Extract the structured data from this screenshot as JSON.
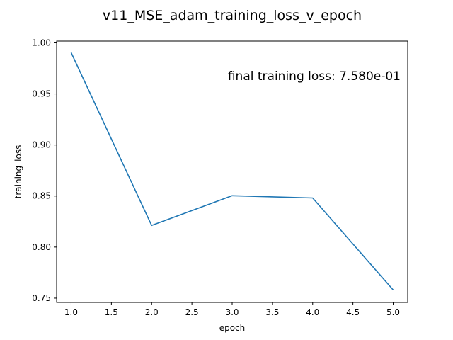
{
  "chart_data": {
    "type": "line",
    "title": "v11_MSE_adam_training_loss_v_epoch",
    "xlabel": "epoch",
    "ylabel": "training_loss",
    "annotation": "final training loss: 7.580e-01",
    "annotation_placement": "top-right",
    "x": [
      1.0,
      2.0,
      3.0,
      4.0,
      5.0
    ],
    "series": [
      {
        "values": [
          0.9905,
          0.8212,
          0.8503,
          0.8481,
          0.758
        ],
        "color": "#1f77b4"
      }
    ],
    "xlim": [
      0.82,
      5.18
    ],
    "ylim": [
      0.7458,
      1.0017
    ],
    "xticks": [
      1.0,
      1.5,
      2.0,
      2.5,
      3.0,
      3.5,
      4.0,
      4.5,
      5.0
    ],
    "xtick_labels": [
      "1.0",
      "1.5",
      "2.0",
      "2.5",
      "3.0",
      "3.5",
      "4.0",
      "4.5",
      "5.0"
    ],
    "yticks": [
      0.75,
      0.8,
      0.85,
      0.9,
      0.95,
      1.0
    ],
    "ytick_labels": [
      "0.75",
      "0.80",
      "0.85",
      "0.90",
      "0.95",
      "1.00"
    ],
    "grid": false,
    "legend": false
  }
}
